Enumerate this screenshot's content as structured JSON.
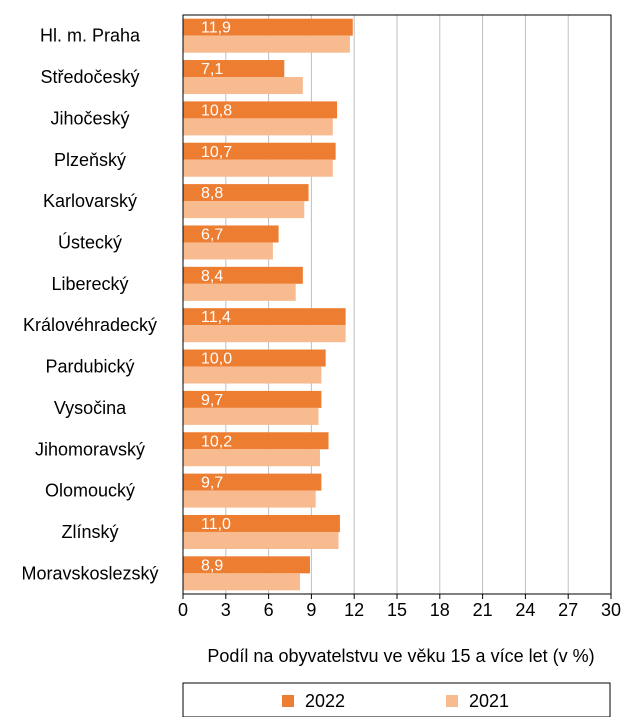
{
  "chart_data": {
    "type": "bar",
    "orientation": "horizontal",
    "categories": [
      "Hl. m. Praha",
      "Středočeský",
      "Jihočeský",
      "Plzeňský",
      "Karlovarský",
      "Ústecký",
      "Liberecký",
      "Královéhradecký",
      "Pardubický",
      "Vysočina",
      "Jihomoravský",
      "Olomoucký",
      "Zlínský",
      "Moravskoslezský"
    ],
    "series": [
      {
        "name": "2022",
        "color": "#ED7D31",
        "values": [
          11.9,
          7.1,
          10.8,
          10.7,
          8.8,
          6.7,
          8.4,
          11.4,
          10.0,
          9.7,
          10.2,
          9.7,
          11.0,
          8.9
        ],
        "labels": [
          "11,9",
          "7,1",
          "10,8",
          "10,7",
          "8,8",
          "6,7",
          "8,4",
          "11,4",
          "10,0",
          "9,7",
          "10,2",
          "9,7",
          "11,0",
          "8,9"
        ]
      },
      {
        "name": "2021",
        "color": "#F7BB8F",
        "values": [
          11.7,
          8.4,
          10.5,
          10.5,
          8.5,
          6.3,
          7.9,
          11.4,
          9.7,
          9.5,
          9.6,
          9.3,
          10.9,
          8.2
        ]
      }
    ],
    "xlabel": "Podíl na obyvatelstvu ve věku 15 a více let (v %)",
    "ylabel": "",
    "xlim": [
      0,
      30
    ],
    "xticks": [
      0,
      3,
      6,
      9,
      12,
      15,
      18,
      21,
      24,
      27,
      30
    ],
    "grid": true,
    "legend_position": "bottom"
  }
}
